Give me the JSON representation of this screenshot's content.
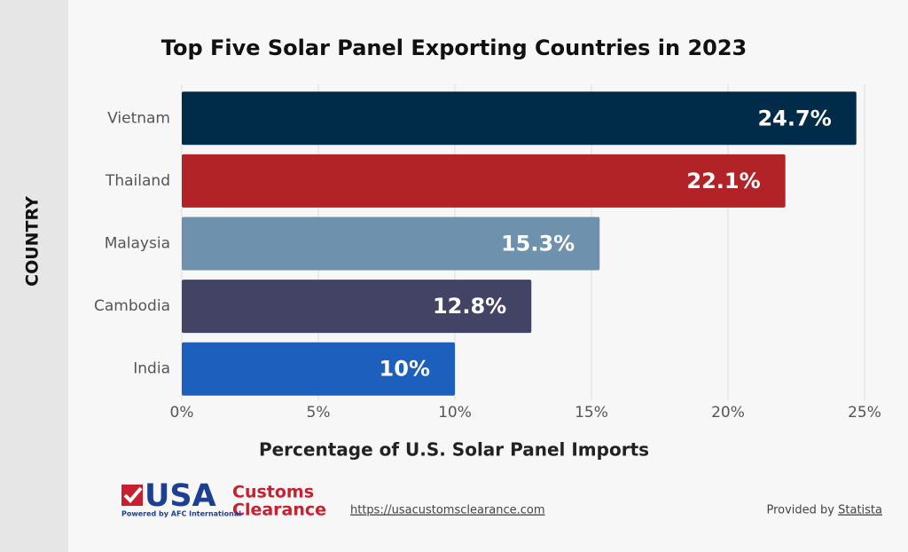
{
  "chart_data": {
    "type": "barh",
    "title": "Top Five Solar Panel Exporting Countries in 2023",
    "categories": [
      "Vietnam",
      "Thailand",
      "Malaysia",
      "Cambodia",
      "India"
    ],
    "values": [
      24.7,
      22.1,
      15.3,
      12.8,
      10
    ],
    "value_labels": [
      "24.7%",
      "22.1%",
      "15.3%",
      "12.8%",
      "10%"
    ],
    "colors": [
      "#002b49",
      "#b22328",
      "#6e91ae",
      "#434366",
      "#1c5fbd"
    ],
    "xlim": [
      0,
      25
    ],
    "xticks": [
      {
        "value": 0,
        "label": "0%"
      },
      {
        "value": 5,
        "label": "5%"
      },
      {
        "value": 10,
        "label": "10%"
      },
      {
        "value": 15,
        "label": "15%"
      },
      {
        "value": 20,
        "label": "20%"
      },
      {
        "value": 25,
        "label": "25%"
      }
    ],
    "xlabel": "Percentage of U.S. Solar Panel Imports",
    "ylabel": "COUNTRY",
    "grid": true
  },
  "footer": {
    "logo_main": "USA",
    "logo_top": "Customs",
    "logo_bottom": "Clearance",
    "logo_tagline": "Powered by AFC International",
    "url": "https://usacustomsclearance.com",
    "provided_by": "Provided by",
    "source": "Statista"
  }
}
